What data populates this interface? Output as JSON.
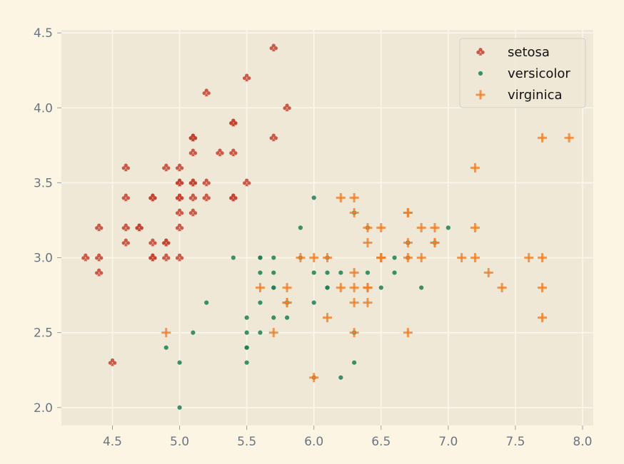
{
  "chart_data": {
    "type": "scatter",
    "title": "",
    "xlabel": "",
    "ylabel": "",
    "xlim": [
      4.12,
      8.08
    ],
    "ylim": [
      1.88,
      4.52
    ],
    "x_ticks": [
      4.5,
      5.0,
      5.5,
      6.0,
      6.5,
      7.0,
      7.5,
      8.0
    ],
    "x_tick_labels": [
      "4.5",
      "5.0",
      "5.5",
      "6.0",
      "6.5",
      "7.0",
      "7.5",
      "8.0"
    ],
    "y_ticks": [
      2.0,
      2.5,
      3.0,
      3.5,
      4.0,
      4.5
    ],
    "y_tick_labels": [
      "2.0",
      "2.5",
      "3.0",
      "3.5",
      "4.0",
      "4.5"
    ],
    "grid": true,
    "legend_position": "top-right",
    "colors": {
      "background": "#fcf5e4",
      "plot_background": "#efe8d6",
      "grid": "#fbf7ec"
    },
    "series": [
      {
        "name": "setosa",
        "marker": "club",
        "color": "#c4402e",
        "points": [
          [
            5.1,
            3.5
          ],
          [
            4.9,
            3.0
          ],
          [
            4.7,
            3.2
          ],
          [
            4.6,
            3.1
          ],
          [
            5.0,
            3.6
          ],
          [
            5.4,
            3.9
          ],
          [
            4.6,
            3.4
          ],
          [
            5.0,
            3.4
          ],
          [
            4.4,
            2.9
          ],
          [
            4.9,
            3.1
          ],
          [
            5.4,
            3.7
          ],
          [
            4.8,
            3.4
          ],
          [
            4.8,
            3.0
          ],
          [
            4.3,
            3.0
          ],
          [
            5.8,
            4.0
          ],
          [
            5.7,
            4.4
          ],
          [
            5.4,
            3.9
          ],
          [
            5.1,
            3.5
          ],
          [
            5.7,
            3.8
          ],
          [
            5.1,
            3.8
          ],
          [
            5.4,
            3.4
          ],
          [
            5.1,
            3.7
          ],
          [
            4.6,
            3.6
          ],
          [
            5.1,
            3.3
          ],
          [
            4.8,
            3.4
          ],
          [
            5.0,
            3.0
          ],
          [
            5.0,
            3.4
          ],
          [
            5.2,
            3.5
          ],
          [
            5.2,
            3.4
          ],
          [
            4.7,
            3.2
          ],
          [
            4.8,
            3.1
          ],
          [
            5.4,
            3.4
          ],
          [
            5.2,
            4.1
          ],
          [
            5.5,
            4.2
          ],
          [
            4.9,
            3.1
          ],
          [
            5.0,
            3.2
          ],
          [
            5.5,
            3.5
          ],
          [
            4.9,
            3.6
          ],
          [
            4.4,
            3.0
          ],
          [
            5.1,
            3.4
          ],
          [
            5.0,
            3.5
          ],
          [
            4.5,
            2.3
          ],
          [
            4.4,
            3.2
          ],
          [
            5.0,
            3.5
          ],
          [
            5.1,
            3.8
          ],
          [
            4.8,
            3.0
          ],
          [
            5.1,
            3.8
          ],
          [
            4.6,
            3.2
          ],
          [
            5.3,
            3.7
          ],
          [
            5.0,
            3.3
          ]
        ]
      },
      {
        "name": "versicolor",
        "marker": "dot",
        "color": "#1a7f55",
        "points": [
          [
            7.0,
            3.2
          ],
          [
            6.4,
            3.2
          ],
          [
            6.9,
            3.1
          ],
          [
            5.5,
            2.3
          ],
          [
            6.5,
            2.8
          ],
          [
            5.7,
            2.8
          ],
          [
            6.3,
            3.3
          ],
          [
            4.9,
            2.4
          ],
          [
            6.6,
            2.9
          ],
          [
            5.2,
            2.7
          ],
          [
            5.0,
            2.0
          ],
          [
            5.9,
            3.0
          ],
          [
            6.0,
            2.2
          ],
          [
            6.1,
            2.9
          ],
          [
            5.6,
            2.9
          ],
          [
            6.7,
            3.1
          ],
          [
            5.6,
            3.0
          ],
          [
            5.8,
            2.7
          ],
          [
            6.2,
            2.2
          ],
          [
            5.6,
            2.5
          ],
          [
            5.9,
            3.2
          ],
          [
            6.1,
            2.8
          ],
          [
            6.3,
            2.5
          ],
          [
            6.1,
            2.8
          ],
          [
            6.4,
            2.9
          ],
          [
            6.6,
            3.0
          ],
          [
            6.8,
            2.8
          ],
          [
            6.7,
            3.0
          ],
          [
            6.0,
            2.9
          ],
          [
            5.7,
            2.6
          ],
          [
            5.5,
            2.4
          ],
          [
            5.5,
            2.4
          ],
          [
            5.8,
            2.7
          ],
          [
            6.0,
            2.7
          ],
          [
            5.4,
            3.0
          ],
          [
            6.0,
            3.4
          ],
          [
            6.7,
            3.1
          ],
          [
            6.3,
            2.3
          ],
          [
            5.6,
            3.0
          ],
          [
            5.5,
            2.5
          ],
          [
            5.5,
            2.6
          ],
          [
            6.1,
            3.0
          ],
          [
            5.8,
            2.6
          ],
          [
            5.0,
            2.3
          ],
          [
            5.6,
            2.7
          ],
          [
            5.7,
            3.0
          ],
          [
            5.7,
            2.9
          ],
          [
            6.2,
            2.9
          ],
          [
            5.1,
            2.5
          ],
          [
            5.7,
            2.8
          ]
        ]
      },
      {
        "name": "virginica",
        "marker": "plus",
        "color": "#ef7f2c",
        "points": [
          [
            6.3,
            3.3
          ],
          [
            5.8,
            2.7
          ],
          [
            7.1,
            3.0
          ],
          [
            6.3,
            2.9
          ],
          [
            6.5,
            3.0
          ],
          [
            7.6,
            3.0
          ],
          [
            4.9,
            2.5
          ],
          [
            7.3,
            2.9
          ],
          [
            6.7,
            2.5
          ],
          [
            7.2,
            3.6
          ],
          [
            6.5,
            3.2
          ],
          [
            6.4,
            2.7
          ],
          [
            6.8,
            3.0
          ],
          [
            5.7,
            2.5
          ],
          [
            5.8,
            2.8
          ],
          [
            6.4,
            3.2
          ],
          [
            6.5,
            3.0
          ],
          [
            7.7,
            3.8
          ],
          [
            7.7,
            2.6
          ],
          [
            6.0,
            2.2
          ],
          [
            6.9,
            3.2
          ],
          [
            5.6,
            2.8
          ],
          [
            7.7,
            2.8
          ],
          [
            6.3,
            2.7
          ],
          [
            6.7,
            3.3
          ],
          [
            7.2,
            3.2
          ],
          [
            6.2,
            2.8
          ],
          [
            6.1,
            3.0
          ],
          [
            6.4,
            2.8
          ],
          [
            7.2,
            3.0
          ],
          [
            7.4,
            2.8
          ],
          [
            7.9,
            3.8
          ],
          [
            6.4,
            2.8
          ],
          [
            6.3,
            2.8
          ],
          [
            6.1,
            2.6
          ],
          [
            7.7,
            3.0
          ],
          [
            6.3,
            3.4
          ],
          [
            6.4,
            3.1
          ],
          [
            6.0,
            3.0
          ],
          [
            6.9,
            3.1
          ],
          [
            6.7,
            3.1
          ],
          [
            6.9,
            3.1
          ],
          [
            5.8,
            2.7
          ],
          [
            6.8,
            3.2
          ],
          [
            6.7,
            3.3
          ],
          [
            6.7,
            3.0
          ],
          [
            6.3,
            2.5
          ],
          [
            6.5,
            3.0
          ],
          [
            6.2,
            3.4
          ],
          [
            5.9,
            3.0
          ]
        ]
      }
    ]
  }
}
